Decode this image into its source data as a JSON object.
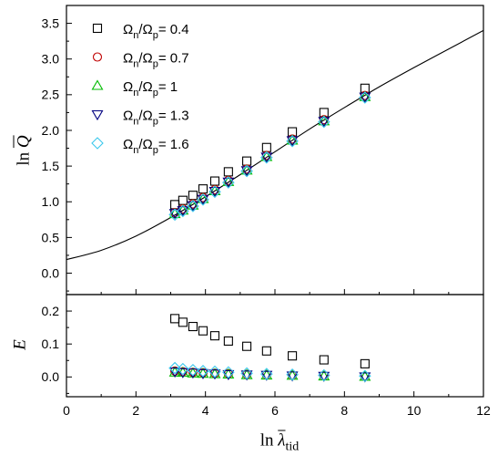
{
  "chart_data": [
    {
      "type": "scatter",
      "panel": "top",
      "xlim": [
        0,
        12
      ],
      "ylim": [
        -0.3,
        3.75
      ],
      "x_major_step": 2,
      "x_minor_step": 1,
      "y_major_step": 0.5,
      "y_minor_step": 0.25,
      "x_tick_labels": [],
      "y_tick_labels": [
        "0.0",
        "0.5",
        "1.0",
        "1.5",
        "2.0",
        "2.5",
        "3.0",
        "3.5"
      ],
      "ylabel": {
        "prefix": "ln",
        "symbol": "Q"
      },
      "grid": false,
      "legend": "top-left",
      "x": [
        3.12,
        3.35,
        3.64,
        3.93,
        4.27,
        4.66,
        5.19,
        5.76,
        6.5,
        7.41,
        8.59
      ],
      "series": [
        {
          "name_parts": [
            "Ω",
            "n",
            "/Ω",
            "p",
            "= 0.4"
          ],
          "marker": "square",
          "color": "#000000",
          "y": [
            0.96,
            1.02,
            1.09,
            1.18,
            1.29,
            1.42,
            1.57,
            1.76,
            1.98,
            2.25,
            2.59
          ]
        },
        {
          "name_parts": [
            "Ω",
            "n",
            "/Ω",
            "p",
            "= 0.7"
          ],
          "marker": "circle",
          "color": "#c00000",
          "y": [
            0.85,
            0.9,
            0.97,
            1.06,
            1.17,
            1.3,
            1.46,
            1.65,
            1.88,
            2.15,
            2.49
          ]
        },
        {
          "name_parts": [
            "Ω",
            "n",
            "/Ω",
            "p",
            "= 1"
          ],
          "marker": "triangle-up",
          "color": "#00bb00",
          "y": [
            0.83,
            0.88,
            0.95,
            1.04,
            1.15,
            1.28,
            1.44,
            1.63,
            1.86,
            2.13,
            2.47
          ]
        },
        {
          "name_parts": [
            "Ω",
            "n",
            "/Ω",
            "p",
            "= 1.3"
          ],
          "marker": "triangle-down",
          "color": "#000080",
          "y": [
            0.84,
            0.88,
            0.95,
            1.04,
            1.15,
            1.28,
            1.44,
            1.63,
            1.86,
            2.13,
            2.47
          ]
        },
        {
          "name_parts": [
            "Ω",
            "n",
            "/Ω",
            "p",
            "= 1.6"
          ],
          "marker": "diamond",
          "color": "#3cc8ec",
          "y": [
            0.82,
            0.87,
            0.94,
            1.03,
            1.14,
            1.27,
            1.43,
            1.62,
            1.85,
            2.12,
            2.46
          ]
        }
      ],
      "curve": {
        "type": "line",
        "color": "#000000",
        "x": [
          0,
          1,
          2,
          3,
          4,
          5,
          6,
          7,
          8,
          9,
          10,
          11,
          12
        ],
        "y": [
          0.19,
          0.32,
          0.52,
          0.78,
          1.07,
          1.38,
          1.7,
          2.02,
          2.32,
          2.61,
          2.88,
          3.14,
          3.4
        ]
      }
    },
    {
      "type": "scatter",
      "panel": "bottom",
      "xlim": [
        0,
        12
      ],
      "ylim": [
        -0.06,
        0.25
      ],
      "x_major_step": 2,
      "x_minor_step": 1,
      "y_major_step": 0.1,
      "y_minor_step": 0.05,
      "x_tick_labels": [
        "0",
        "2",
        "4",
        "6",
        "8",
        "10",
        "12"
      ],
      "y_tick_labels": [
        "0.0",
        "0.1",
        "0.2"
      ],
      "xlabel": {
        "prefix": "ln",
        "symbol": "λ",
        "subscript": "tid"
      },
      "ylabel": {
        "symbol": "E"
      },
      "grid": false,
      "x": [
        3.12,
        3.35,
        3.64,
        3.93,
        4.27,
        4.66,
        5.19,
        5.76,
        6.5,
        7.41,
        8.59
      ],
      "series": [
        {
          "marker": "square",
          "color": "#000000",
          "y": [
            0.177,
            0.166,
            0.153,
            0.14,
            0.125,
            0.109,
            0.093,
            0.079,
            0.064,
            0.052,
            0.04
          ]
        },
        {
          "marker": "circle",
          "color": "#c00000",
          "y": [
            0.018,
            0.016,
            0.014,
            0.013,
            0.011,
            0.01,
            0.008,
            0.007,
            0.005,
            0.004,
            0.002
          ]
        },
        {
          "marker": "triangle-up",
          "color": "#00bb00",
          "y": [
            0.014,
            0.013,
            0.011,
            0.01,
            0.009,
            0.008,
            0.006,
            0.005,
            0.004,
            0.002,
            0.001
          ]
        },
        {
          "marker": "triangle-down",
          "color": "#000080",
          "y": [
            0.016,
            0.014,
            0.013,
            0.011,
            0.01,
            0.008,
            0.007,
            0.006,
            0.004,
            0.003,
            0.001
          ]
        },
        {
          "marker": "diamond",
          "color": "#3cc8ec",
          "y": [
            0.027,
            0.024,
            0.021,
            0.018,
            0.016,
            0.014,
            0.011,
            0.009,
            0.007,
            0.005,
            0.003
          ]
        }
      ]
    }
  ]
}
